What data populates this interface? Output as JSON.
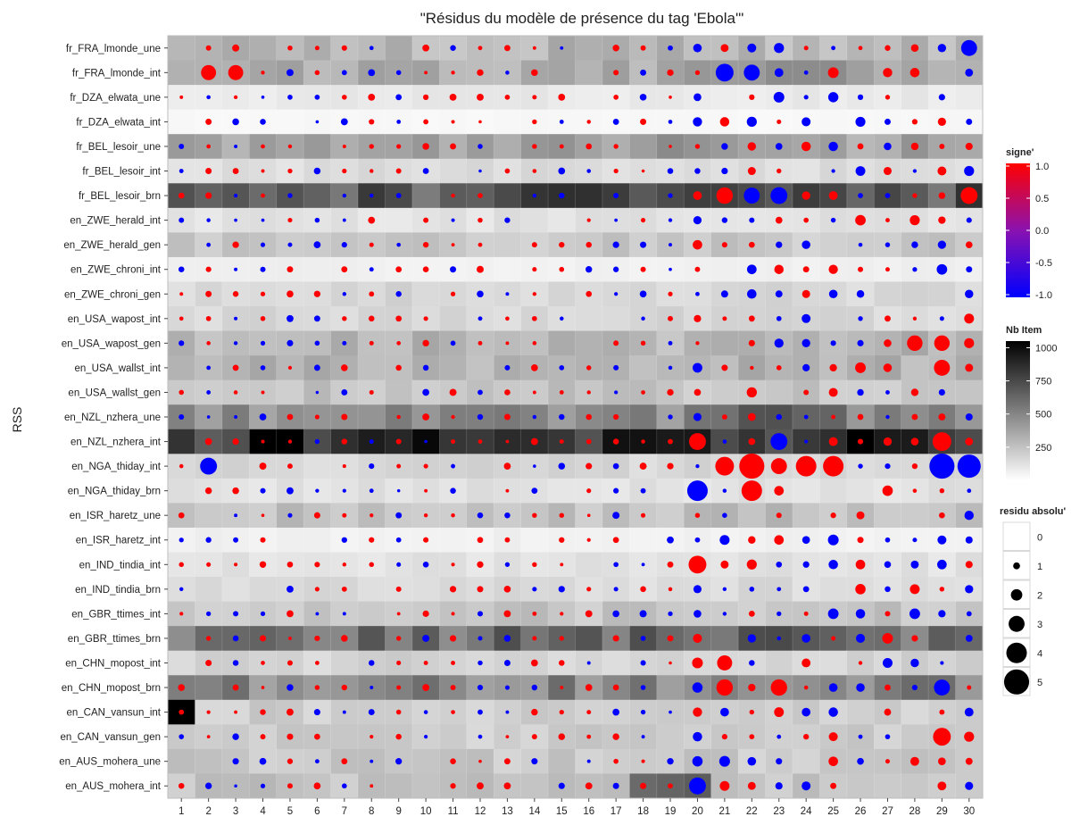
{
  "chart_data": {
    "type": "heatmap",
    "title": "\"Résidus du modèle de présence du tag 'Ebola'\"",
    "xlabel": "",
    "ylabel": "RSS",
    "x": [
      1,
      2,
      3,
      4,
      5,
      6,
      7,
      8,
      9,
      10,
      11,
      12,
      13,
      14,
      15,
      16,
      17,
      18,
      19,
      20,
      21,
      22,
      23,
      24,
      25,
      26,
      27,
      28,
      29,
      30
    ],
    "rows": [
      "fr_FRA_lmonde_une",
      "fr_FRA_lmonde_int",
      "fr_DZA_elwata_une",
      "fr_DZA_elwata_int",
      "fr_BEL_lesoir_une",
      "fr_BEL_lesoir_int",
      "fr_BEL_lesoir_brn",
      "en_ZWE_herald_int",
      "en_ZWE_herald_gen",
      "en_ZWE_chroni_int",
      "en_ZWE_chroni_gen",
      "en_USA_wapost_int",
      "en_USA_wapost_gen",
      "en_USA_wallst_int",
      "en_USA_wallst_gen",
      "en_NZL_nzhera_une",
      "en_NZL_nzhera_int",
      "en_NGA_thiday_int",
      "en_NGA_thiday_brn",
      "en_ISR_haretz_une",
      "en_ISR_haretz_int",
      "en_IND_tindia_int",
      "en_IND_tindia_brn",
      "en_GBR_ttimes_int",
      "en_GBR_ttimes_brn",
      "en_CHN_mopost_int",
      "en_CHN_mopost_brn",
      "en_CAN_vansun_int",
      "en_CAN_vansun_gen",
      "en_AUS_mohera_une",
      "en_AUS_mohera_int"
    ],
    "row_base_nb_item": [
      300,
      330,
      90,
      30,
      380,
      140,
      700,
      120,
      220,
      60,
      160,
      160,
      300,
      310,
      240,
      470,
      880,
      160,
      120,
      260,
      60,
      120,
      150,
      240,
      600,
      180,
      500,
      200,
      200,
      220,
      250
    ],
    "highlights": [
      {
        "row": 1,
        "cols": [
          20,
          21,
          22,
          23,
          24,
          25
        ],
        "nb_item": 430
      },
      {
        "row": 4,
        "cols": [
          18,
          19,
          20,
          21,
          22,
          23,
          24,
          25
        ],
        "nb_item": 420
      },
      {
        "row": 6,
        "cols": [
          18,
          19,
          20,
          21,
          22,
          23,
          24,
          25
        ],
        "nb_item": 780
      },
      {
        "row": 15,
        "cols": [
          21,
          22,
          23,
          24,
          25
        ],
        "nb_item": 650
      },
      {
        "row": 16,
        "cols": [
          18,
          19,
          20
        ],
        "nb_item": 1050
      },
      {
        "row": 16,
        "cols": [
          4,
          5,
          8
        ],
        "nb_item": 1000
      },
      {
        "row": 16,
        "cols": [
          21,
          22,
          23,
          24,
          25
        ],
        "nb_item": 780
      },
      {
        "row": 27,
        "cols": [
          1
        ],
        "nb_item": 950
      },
      {
        "row": 30,
        "cols": [
          18,
          19,
          20
        ],
        "nb_item": 650
      }
    ],
    "big_points": [
      {
        "row": "fr_FRA_lmonde_int",
        "x": 2,
        "signe": 1,
        "residu": 2.8
      },
      {
        "row": "fr_FRA_lmonde_int",
        "x": 3,
        "signe": 1,
        "residu": 2.8
      },
      {
        "row": "fr_FRA_lmonde_int",
        "x": 21,
        "signe": -1,
        "residu": 3.4
      },
      {
        "row": "fr_FRA_lmonde_int",
        "x": 22,
        "signe": -1,
        "residu": 3.0
      },
      {
        "row": "fr_FRA_lmonde_une",
        "x": 30,
        "signe": -1,
        "residu": 3.0
      },
      {
        "row": "fr_BEL_lesoir_brn",
        "x": 21,
        "signe": 1,
        "residu": 3.1
      },
      {
        "row": "fr_BEL_lesoir_brn",
        "x": 22,
        "signe": -1,
        "residu": 3.0
      },
      {
        "row": "fr_BEL_lesoir_brn",
        "x": 23,
        "signe": -1,
        "residu": 3.2
      },
      {
        "row": "fr_BEL_lesoir_brn",
        "x": 30,
        "signe": 1,
        "residu": 3.2
      },
      {
        "row": "en_NGA_thiday_int",
        "x": 2,
        "signe": -1,
        "residu": 3.2
      },
      {
        "row": "en_NGA_thiday_int",
        "x": 21,
        "signe": 1,
        "residu": 3.6
      },
      {
        "row": "en_NGA_thiday_int",
        "x": 22,
        "signe": 1,
        "residu": 5.0
      },
      {
        "row": "en_NGA_thiday_int",
        "x": 23,
        "signe": 1,
        "residu": 3.0
      },
      {
        "row": "en_NGA_thiday_int",
        "x": 24,
        "signe": 1,
        "residu": 4.0
      },
      {
        "row": "en_NGA_thiday_int",
        "x": 25,
        "signe": 1,
        "residu": 4.0
      },
      {
        "row": "en_NGA_thiday_int",
        "x": 29,
        "signe": -1,
        "residu": 5.0
      },
      {
        "row": "en_NGA_thiday_int",
        "x": 30,
        "signe": -1,
        "residu": 4.6
      },
      {
        "row": "en_NGA_thiday_brn",
        "x": 20,
        "signe": -1,
        "residu": 4.0
      },
      {
        "row": "en_NGA_thiday_brn",
        "x": 22,
        "signe": 1,
        "residu": 4.0
      },
      {
        "row": "en_NZL_nzhera_int",
        "x": 20,
        "signe": 1,
        "residu": 3.2
      },
      {
        "row": "en_NZL_nzhera_int",
        "x": 23,
        "signe": -1,
        "residu": 3.2
      },
      {
        "row": "en_NZL_nzhera_int",
        "x": 29,
        "signe": 1,
        "residu": 3.6
      },
      {
        "row": "en_IND_tindia_int",
        "x": 20,
        "signe": 1,
        "residu": 3.4
      },
      {
        "row": "en_AUS_mohera_int",
        "x": 20,
        "signe": -1,
        "residu": 3.2
      },
      {
        "row": "en_CAN_vansun_gen",
        "x": 29,
        "signe": 1,
        "residu": 3.4
      },
      {
        "row": "en_CHN_mopost_brn",
        "x": 21,
        "signe": 1,
        "residu": 3.1
      },
      {
        "row": "en_CHN_mopost_brn",
        "x": 23,
        "signe": 1,
        "residu": 3.1
      },
      {
        "row": "en_CHN_mopost_brn",
        "x": 29,
        "signe": -1,
        "residu": 3.0
      },
      {
        "row": "en_CHN_mopost_int",
        "x": 21,
        "signe": 1,
        "residu": 2.8
      },
      {
        "row": "en_USA_wapost_gen",
        "x": 28,
        "signe": 1,
        "residu": 2.9
      },
      {
        "row": "en_USA_wapost_gen",
        "x": 29,
        "signe": 1,
        "residu": 2.9
      },
      {
        "row": "en_USA_wallst_int",
        "x": 29,
        "signe": 1,
        "residu": 3.0
      }
    ],
    "legend": {
      "signe": {
        "title": "signe'",
        "ticks": [
          "1.0",
          "0.5",
          "0.0",
          "-0.5",
          "-1.0"
        ],
        "colors": {
          "pos": "#ff0000",
          "mid": "#8a12b0",
          "neg": "#0000ff"
        }
      },
      "nb_item": {
        "title": "Nb Item",
        "ticks": [
          "1000",
          "750",
          "500",
          "250"
        ],
        "range": [
          0,
          1050
        ]
      },
      "residu": {
        "title": "residu absolu'",
        "ticks": [
          "0",
          "1",
          "2",
          "3",
          "4",
          "5"
        ]
      }
    },
    "grid": true
  }
}
